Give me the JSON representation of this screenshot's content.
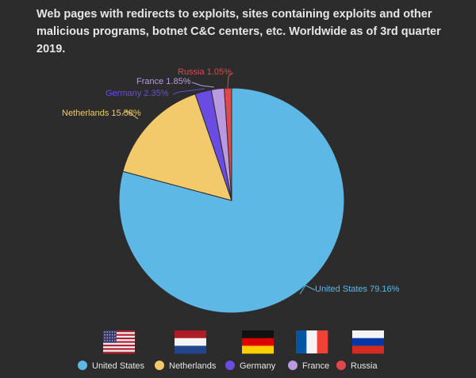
{
  "title": "Web pages with redirects to exploits, sites containing exploits and other malicious programs, botnet C&C centers, etc. Worldwide as of 3rd quarter 2019.",
  "colors": {
    "background": "#2c2c2c",
    "United States": "#5db8e6",
    "Netherlands": "#f2ca6b",
    "Germany": "#6a4de0",
    "France": "#b99ae0",
    "Russia": "#e0474c"
  },
  "chart_data": {
    "type": "pie",
    "title": "Web pages with redirects to exploits, sites containing exploits and other malicious programs, botnet C&C centers, etc. Worldwide as of 3rd quarter 2019.",
    "categories": [
      "United States",
      "Netherlands",
      "Germany",
      "France",
      "Russia"
    ],
    "values": [
      79.16,
      15.58,
      2.35,
      1.85,
      1.05
    ],
    "unit": "%",
    "data_labels": [
      "United States 79.16%",
      "Netherlands 15.58%",
      "Germany 2.35%",
      "France 1.85%",
      "Russia 1.05%"
    ],
    "start_angle": "12 o'clock, clockwise",
    "legend_position": "bottom",
    "legend_flags": [
      "us-flag-icon",
      "netherlands-flag-icon",
      "germany-flag-icon",
      "france-flag-icon",
      "russia-flag-icon"
    ]
  }
}
